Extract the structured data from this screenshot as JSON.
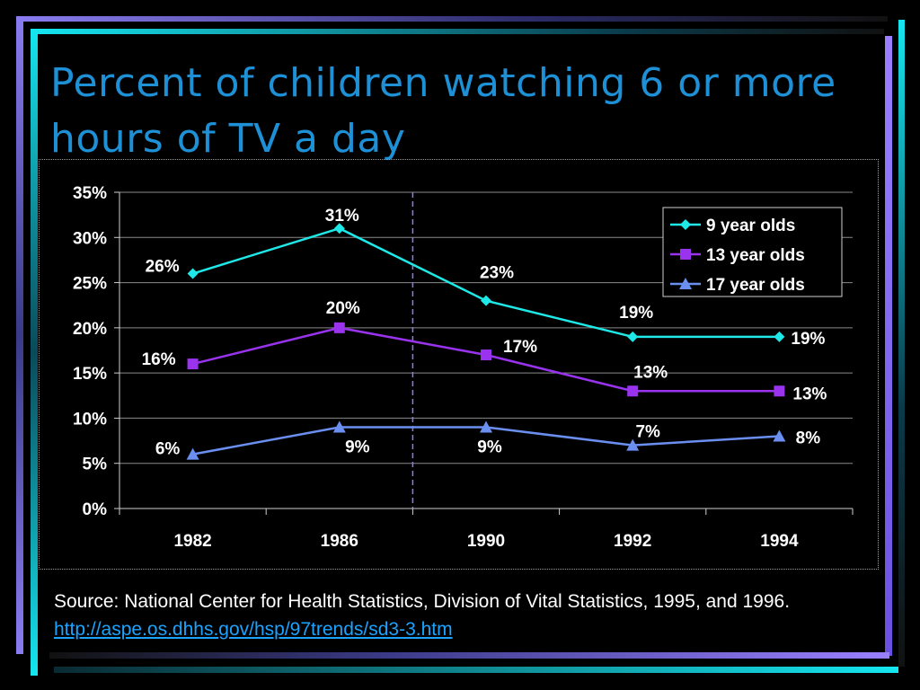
{
  "title": "Percent of children watching 6 or more hours of TV a day",
  "source": {
    "text": "Source: National Center for Health Statistics, Division of Vital Statistics, 1995, and 1996.",
    "link": "http://aspe.os.dhhs.gov/hsp/97trends/sd3-3.htm"
  },
  "colors": {
    "background": "#000000",
    "title": "#1e90d6",
    "series_9": "#1ee8e8",
    "series_13": "#9933ee",
    "series_17": "#6a8ff0",
    "divider": "#8a7cf0"
  },
  "chart_data": {
    "type": "line",
    "categories": [
      "1982",
      "1986",
      "1990",
      "1992",
      "1994"
    ],
    "series": [
      {
        "name": "9 year olds",
        "values": [
          26,
          31,
          23,
          19,
          19
        ],
        "labels": [
          "26%",
          "31%",
          "23%",
          "19%",
          "19%"
        ],
        "marker": "diamond",
        "color": "#1ee8e8"
      },
      {
        "name": "13 year olds",
        "values": [
          16,
          20,
          17,
          13,
          13
        ],
        "labels": [
          "16%",
          "20%",
          "17%",
          "13%",
          "13%"
        ],
        "marker": "square",
        "color": "#9933ee"
      },
      {
        "name": "17 year olds",
        "values": [
          6,
          9,
          9,
          7,
          8
        ],
        "labels": [
          "6%",
          "9%",
          "9%",
          "7%",
          "8%"
        ],
        "marker": "triangle",
        "color": "#6a8ff0"
      }
    ],
    "yticks": [
      "0%",
      "5%",
      "10%",
      "15%",
      "20%",
      "25%",
      "30%",
      "35%"
    ],
    "ylim": [
      0,
      35
    ],
    "grid": true,
    "legend": "top-right",
    "divider_between": [
      "1986",
      "1990"
    ]
  }
}
